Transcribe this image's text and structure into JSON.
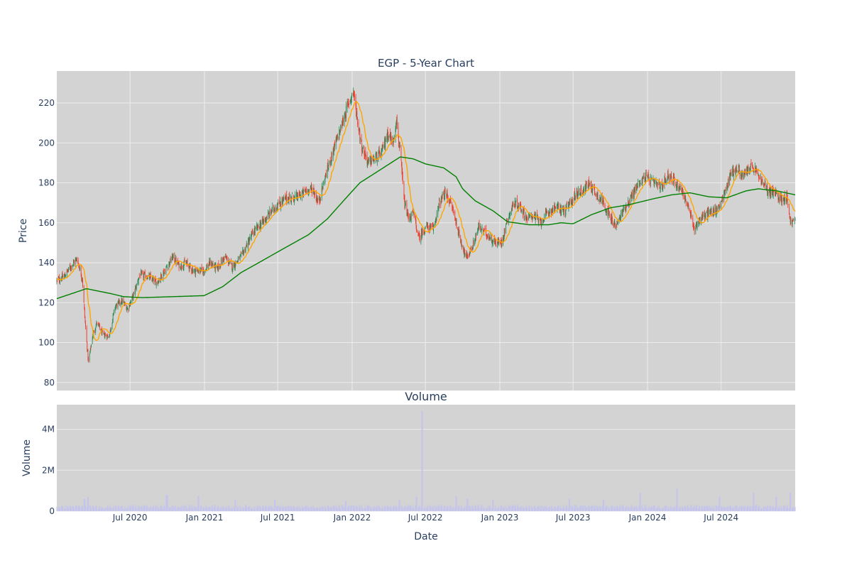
{
  "chart_data": [
    {
      "type": "candlestick",
      "title": "EGP - 5-Year Chart",
      "ylabel": "Price",
      "ylim": [
        76,
        236
      ],
      "yticks": [
        80,
        100,
        120,
        140,
        160,
        180,
        200,
        220
      ],
      "xlim": [
        "2020-01-02",
        "2024-12-31"
      ],
      "grid": true,
      "legend": "none",
      "colors": {
        "background": "#d3d3d3",
        "up": "#2e8b57",
        "down": "#ef3b2c",
        "ma20": "#ffa500",
        "ma200": "#008000",
        "grid": "#ececec"
      },
      "price_keypoints": [
        [
          "2020-01-02",
          131
        ],
        [
          "2020-01-20",
          133
        ],
        [
          "2020-02-05",
          138
        ],
        [
          "2020-02-21",
          142
        ],
        [
          "2020-03-05",
          132
        ],
        [
          "2020-03-12",
          110
        ],
        [
          "2020-03-20",
          90
        ],
        [
          "2020-03-31",
          104
        ],
        [
          "2020-04-10",
          110
        ],
        [
          "2020-04-25",
          104
        ],
        [
          "2020-05-10",
          103
        ],
        [
          "2020-05-25",
          118
        ],
        [
          "2020-06-10",
          121
        ],
        [
          "2020-06-25",
          117
        ],
        [
          "2020-07-10",
          124
        ],
        [
          "2020-07-25",
          134
        ],
        [
          "2020-08-15",
          133
        ],
        [
          "2020-09-05",
          130
        ],
        [
          "2020-09-25",
          136
        ],
        [
          "2020-10-15",
          143
        ],
        [
          "2020-11-01",
          138
        ],
        [
          "2020-11-15",
          140
        ],
        [
          "2020-12-05",
          136
        ],
        [
          "2020-12-31",
          136
        ],
        [
          "2021-01-15",
          140
        ],
        [
          "2021-02-01",
          137
        ],
        [
          "2021-02-20",
          143
        ],
        [
          "2021-03-10",
          138
        ],
        [
          "2021-04-01",
          143
        ],
        [
          "2021-05-01",
          155
        ],
        [
          "2021-06-01",
          162
        ],
        [
          "2021-06-20",
          167
        ],
        [
          "2021-07-20",
          172
        ],
        [
          "2021-08-20",
          173
        ],
        [
          "2021-09-10",
          176
        ],
        [
          "2021-09-25",
          177
        ],
        [
          "2021-10-10",
          170
        ],
        [
          "2021-10-25",
          182
        ],
        [
          "2021-11-15",
          196
        ],
        [
          "2021-12-05",
          208
        ],
        [
          "2021-12-20",
          218
        ],
        [
          "2022-01-04",
          226
        ],
        [
          "2022-01-15",
          210
        ],
        [
          "2022-01-25",
          198
        ],
        [
          "2022-02-10",
          190
        ],
        [
          "2022-02-25",
          192
        ],
        [
          "2022-03-15",
          195
        ],
        [
          "2022-03-30",
          205
        ],
        [
          "2022-04-12",
          200
        ],
        [
          "2022-04-20",
          212
        ],
        [
          "2022-04-29",
          196
        ],
        [
          "2022-05-10",
          170
        ],
        [
          "2022-05-20",
          162
        ],
        [
          "2022-06-01",
          165
        ],
        [
          "2022-06-15",
          152
        ],
        [
          "2022-07-01",
          158
        ],
        [
          "2022-07-20",
          157
        ],
        [
          "2022-08-05",
          170
        ],
        [
          "2022-08-20",
          175
        ],
        [
          "2022-09-05",
          168
        ],
        [
          "2022-09-25",
          152
        ],
        [
          "2022-10-10",
          142
        ],
        [
          "2022-10-25",
          148
        ],
        [
          "2022-11-10",
          158
        ],
        [
          "2022-12-01",
          154
        ],
        [
          "2022-12-20",
          150
        ],
        [
          "2023-01-05",
          150
        ],
        [
          "2023-01-20",
          162
        ],
        [
          "2023-02-05",
          170
        ],
        [
          "2023-02-20",
          168
        ],
        [
          "2023-03-10",
          162
        ],
        [
          "2023-03-25",
          164
        ],
        [
          "2023-04-10",
          160
        ],
        [
          "2023-04-30",
          165
        ],
        [
          "2023-05-20",
          168
        ],
        [
          "2023-06-10",
          166
        ],
        [
          "2023-06-25",
          170
        ],
        [
          "2023-07-10",
          175
        ],
        [
          "2023-07-25",
          176
        ],
        [
          "2023-08-10",
          180
        ],
        [
          "2023-08-25",
          175
        ],
        [
          "2023-09-15",
          170
        ],
        [
          "2023-10-01",
          162
        ],
        [
          "2023-10-15",
          158
        ],
        [
          "2023-11-01",
          166
        ],
        [
          "2023-11-20",
          172
        ],
        [
          "2023-12-10",
          180
        ],
        [
          "2023-12-28",
          183
        ],
        [
          "2024-01-15",
          180
        ],
        [
          "2024-02-05",
          178
        ],
        [
          "2024-02-20",
          184
        ],
        [
          "2024-03-10",
          180
        ],
        [
          "2024-03-25",
          177
        ],
        [
          "2024-04-10",
          168
        ],
        [
          "2024-04-25",
          157
        ],
        [
          "2024-05-10",
          162
        ],
        [
          "2024-06-01",
          165
        ],
        [
          "2024-06-20",
          166
        ],
        [
          "2024-07-10",
          175
        ],
        [
          "2024-07-25",
          185
        ],
        [
          "2024-08-10",
          187
        ],
        [
          "2024-08-25",
          183
        ],
        [
          "2024-09-10",
          188
        ],
        [
          "2024-09-25",
          186
        ],
        [
          "2024-10-10",
          180
        ],
        [
          "2024-10-25",
          176
        ],
        [
          "2024-11-10",
          175
        ],
        [
          "2024-11-25",
          172
        ],
        [
          "2024-12-10",
          173
        ],
        [
          "2024-12-20",
          160
        ],
        [
          "2024-12-31",
          161
        ]
      ],
      "ma200_keypoints": [
        [
          "2020-01-02",
          122
        ],
        [
          "2020-02-15",
          125
        ],
        [
          "2020-03-15",
          127
        ],
        [
          "2020-05-15",
          124.5
        ],
        [
          "2020-06-15",
          123
        ],
        [
          "2020-08-01",
          122.5
        ],
        [
          "2020-10-15",
          123
        ],
        [
          "2020-12-31",
          123.5
        ],
        [
          "2021-02-15",
          128
        ],
        [
          "2021-04-01",
          135
        ],
        [
          "2021-05-15",
          140
        ],
        [
          "2021-07-15",
          147
        ],
        [
          "2021-09-15",
          154
        ],
        [
          "2021-11-01",
          162
        ],
        [
          "2021-12-15",
          172
        ],
        [
          "2022-01-20",
          180
        ],
        [
          "2022-03-15",
          187
        ],
        [
          "2022-04-30",
          193
        ],
        [
          "2022-06-01",
          192
        ],
        [
          "2022-07-01",
          189.5
        ],
        [
          "2022-08-15",
          187.5
        ],
        [
          "2022-09-15",
          183
        ],
        [
          "2022-10-01",
          177
        ],
        [
          "2022-11-01",
          171
        ],
        [
          "2022-12-15",
          166
        ],
        [
          "2023-01-20",
          160.5
        ],
        [
          "2023-03-15",
          159
        ],
        [
          "2023-05-01",
          159
        ],
        [
          "2023-06-01",
          160
        ],
        [
          "2023-07-01",
          159.5
        ],
        [
          "2023-08-15",
          164
        ],
        [
          "2023-10-01",
          167.5
        ],
        [
          "2023-11-15",
          169
        ],
        [
          "2024-01-15",
          172
        ],
        [
          "2024-03-01",
          174
        ],
        [
          "2024-04-15",
          175
        ],
        [
          "2024-06-01",
          173
        ],
        [
          "2024-07-15",
          172.5
        ],
        [
          "2024-09-01",
          176
        ],
        [
          "2024-10-01",
          177
        ],
        [
          "2024-11-15",
          176
        ],
        [
          "2024-12-31",
          174
        ]
      ]
    },
    {
      "type": "bar",
      "title": "Volume",
      "xlabel": "Date",
      "ylabel": "Volume",
      "ylim": [
        0,
        5200000
      ],
      "yticks": [
        0,
        2000000,
        4000000
      ],
      "ytick_labels": [
        "0",
        "2M",
        "4M"
      ],
      "x_tick_labels": [
        [
          "2020-07-01",
          "Jul 2020"
        ],
        [
          "2021-01-01",
          "Jan 2021"
        ],
        [
          "2021-07-01",
          "Jul 2021"
        ],
        [
          "2022-01-01",
          "Jan 2022"
        ],
        [
          "2022-07-01",
          "Jul 2022"
        ],
        [
          "2023-01-01",
          "Jan 2023"
        ],
        [
          "2023-07-01",
          "Jul 2023"
        ],
        [
          "2024-01-01",
          "Jan 2024"
        ],
        [
          "2024-07-01",
          "Jul 2024"
        ]
      ],
      "grid": true,
      "colors": {
        "background": "#d3d3d3",
        "bar": "#c4c4ec"
      },
      "baseline": 230000,
      "spikes": [
        [
          "2020-03-10",
          600000
        ],
        [
          "2020-03-20",
          700000
        ],
        [
          "2020-09-30",
          800000
        ],
        [
          "2020-12-18",
          750000
        ],
        [
          "2021-03-19",
          550000
        ],
        [
          "2021-06-25",
          550000
        ],
        [
          "2021-12-17",
          500000
        ],
        [
          "2022-04-29",
          550000
        ],
        [
          "2022-06-10",
          700000
        ],
        [
          "2022-06-24",
          4900000
        ],
        [
          "2022-09-16",
          750000
        ],
        [
          "2022-10-14",
          600000
        ],
        [
          "2022-12-16",
          550000
        ],
        [
          "2023-06-23",
          600000
        ],
        [
          "2023-09-15",
          550000
        ],
        [
          "2023-12-15",
          900000
        ],
        [
          "2024-03-15",
          1100000
        ],
        [
          "2024-06-28",
          700000
        ],
        [
          "2024-09-20",
          900000
        ],
        [
          "2024-11-15",
          700000
        ],
        [
          "2024-12-20",
          900000
        ]
      ]
    }
  ]
}
